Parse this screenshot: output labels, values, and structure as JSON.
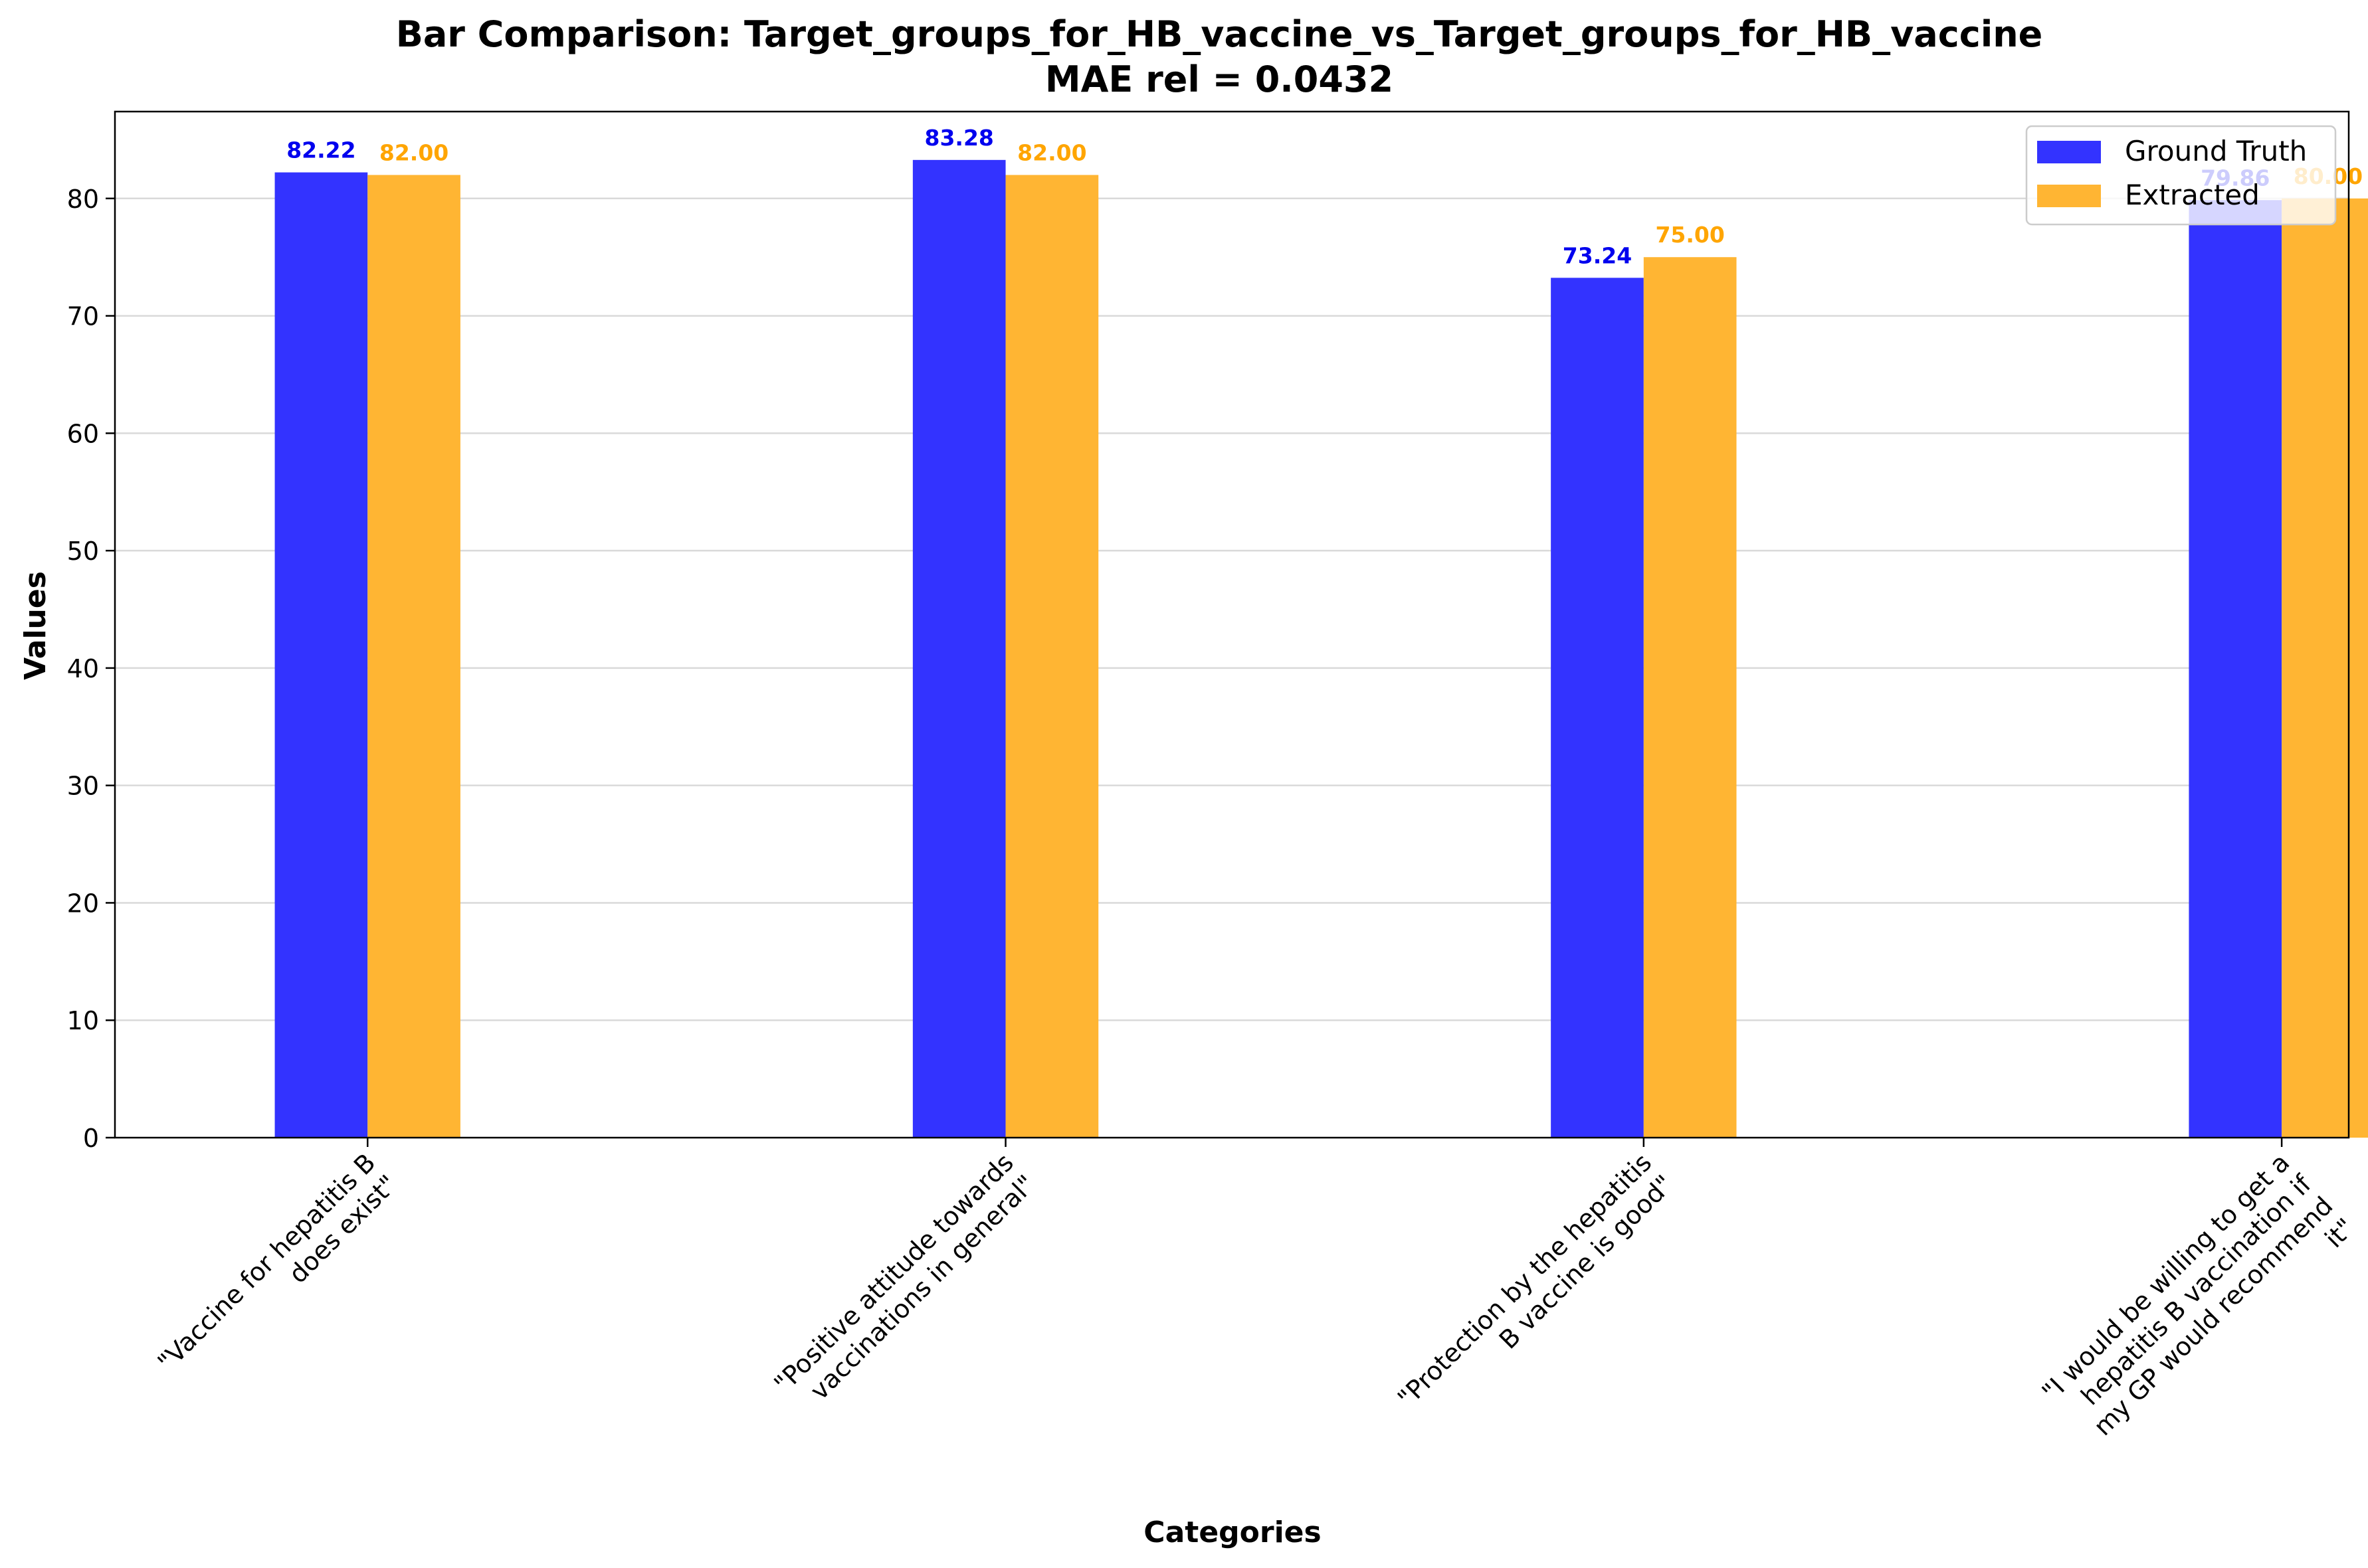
{
  "chart_data": {
    "type": "bar",
    "title": "Bar Comparison: Target_groups_for_HB_vaccine_vs_Target_groups_for_HB_vaccine",
    "subtitle": "MAE rel = 0.0432",
    "xlabel": "Categories",
    "ylabel": "Values",
    "categories": [
      "\"Vaccine for hepatitis B does exist\"",
      "\"Positive attitude towards vaccinations in general\"",
      "\"Protection by the hepatitis B vaccine is good\"",
      "\"I would be willing to get a hepatitis B vaccination if my GP would recommend it\""
    ],
    "category_lines": [
      [
        "\"Vaccine for hepatitis B",
        "does exist\""
      ],
      [
        "\"Positive attitude towards",
        "vaccinations in general\""
      ],
      [
        "\"Protection by the hepatitis",
        "B vaccine is good\""
      ],
      [
        "\"I would be willing to get a",
        "hepatitis B vaccination if",
        "my GP would recommend",
        "it\""
      ]
    ],
    "series": [
      {
        "name": "Ground Truth",
        "values": [
          82.22,
          83.28,
          73.24,
          79.86
        ],
        "labels": [
          "82.22",
          "83.28",
          "73.24",
          "79.86"
        ],
        "color": "#3333ff",
        "label_color": "#0000ee"
      },
      {
        "name": "Extracted",
        "values": [
          82.0,
          82.0,
          75.0,
          80.0
        ],
        "labels": [
          "82.00",
          "82.00",
          "75.00",
          "80.00"
        ],
        "color": "#ffb533",
        "label_color": "#ffa500"
      }
    ],
    "ylim": [
      0,
      87.4
    ],
    "yticks": [
      0,
      10,
      20,
      30,
      40,
      50,
      60,
      70,
      80
    ],
    "grid": "y",
    "legend": "top-right"
  }
}
